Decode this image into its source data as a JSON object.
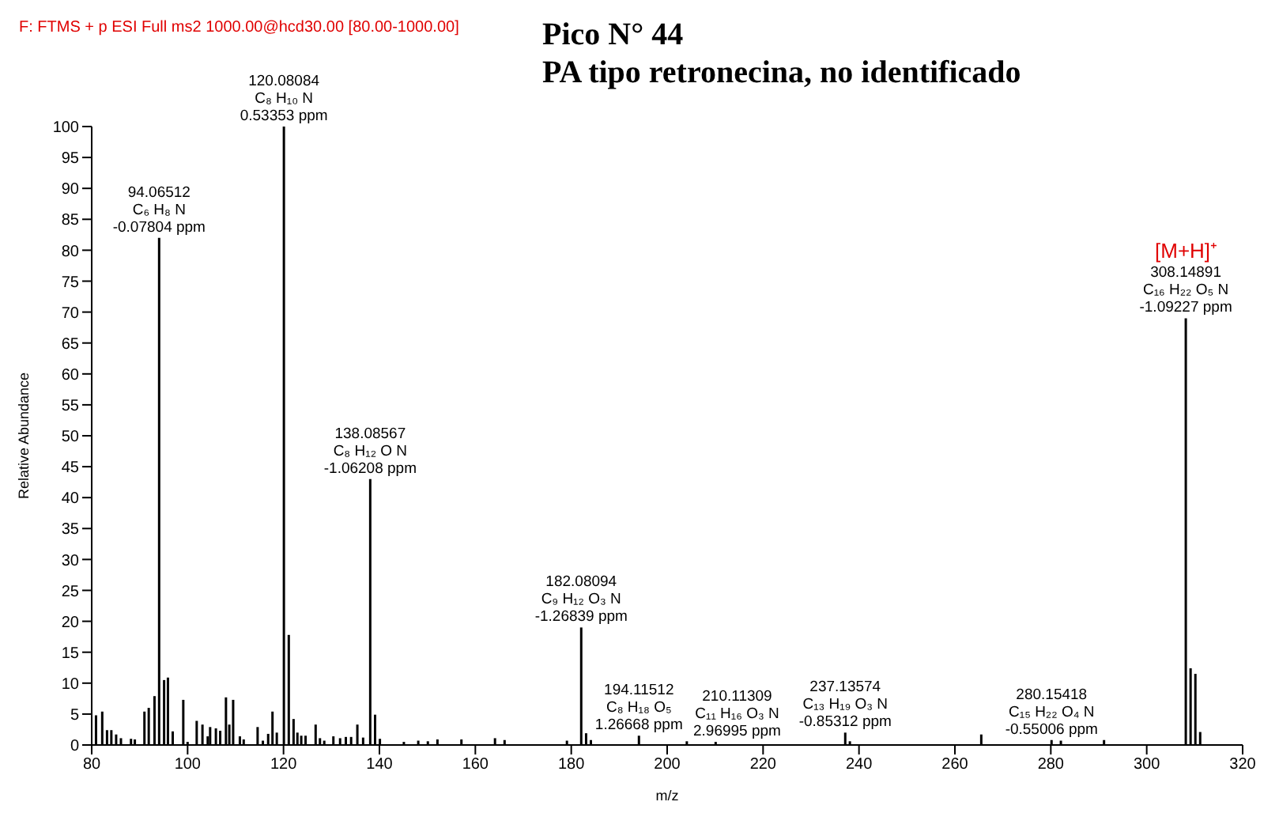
{
  "chart_data": {
    "type": "bar",
    "title": "Pico N° 44",
    "subtitle": "PA tipo retronecina, no identificado",
    "xlabel": "m/z",
    "ylabel": "Relative Abundance",
    "annotations": [
      "F: FTMS + p ESI Full ms2 1000.00@hcd30.00 [80.00-1000.00]",
      {
        "text": "94.06512\nC₆ H₈ N\n-0.07804 ppm",
        "x": 94.06512,
        "y": 82
      },
      {
        "text": "120.08084\nC₈ H₁₀ N\n0.53353 ppm",
        "x": 120.08084,
        "y": 100
      },
      {
        "text": "138.08567\nC₈ H₁₂ O N\n-1.06208 ppm",
        "x": 138.08567,
        "y": 43
      },
      {
        "text": "182.08094\nC₉ H₁₂ O₃ N\n-1.26839 ppm",
        "x": 182.08094,
        "y": 19
      },
      {
        "text": "194.11512\nC₈ H₁₈ O₅\n1.26668 ppm",
        "x": 194.11512,
        "y": 1.5
      },
      {
        "text": "210.11309\nC₁₁ H₁₆ O₃ N\n2.96995 ppm",
        "x": 210.11309,
        "y": 0.5
      },
      {
        "text": "237.13574\nC₁₃ H₁₉ O₃ N\n-0.85312 ppm",
        "x": 237.13574,
        "y": 2.0
      },
      {
        "text": "280.15418\nC₁₅ H₂₂ O₄ N\n-0.55006 ppm",
        "x": 280.15418,
        "y": 0.8
      },
      {
        "text": "308.14891\nC₁₆ H₂₂ O₅ N\n-1.09227 ppm",
        "x": 308.14891,
        "y": 69
      },
      {
        "text": "[M+H]⁺",
        "x": 308.14891,
        "y": 69
      }
    ],
    "x": [
      80.9,
      82.2,
      83.2,
      84.1,
      85.1,
      86.1,
      88.2,
      89.0,
      91.0,
      91.9,
      93.1,
      94.06512,
      95.1,
      95.9,
      96.9,
      99.1,
      100.0,
      101.9,
      103.1,
      104.2,
      104.7,
      105.9,
      106.8,
      108.0,
      108.7,
      109.5,
      110.9,
      111.7,
      114.6,
      115.7,
      116.8,
      117.7,
      118.6,
      120.08084,
      121.1,
      122.1,
      122.9,
      123.7,
      124.6,
      126.7,
      127.6,
      128.5,
      130.4,
      131.8,
      133.0,
      134.1,
      135.4,
      136.6,
      138.08567,
      139.1,
      140.1,
      145.1,
      148.1,
      150.1,
      152.1,
      157.1,
      164.1,
      166.1,
      179.1,
      182.08094,
      183.1,
      184.1,
      194.11512,
      204.1,
      210.11309,
      237.13574,
      238.1,
      265.5,
      280.15418,
      282.1,
      291.1,
      308.14891,
      309.15,
      310.15,
      311.15
    ],
    "values": [
      4.8,
      5.4,
      2.4,
      2.4,
      1.7,
      1.1,
      1.0,
      0.9,
      5.4,
      6.0,
      7.9,
      82,
      10.5,
      10.9,
      2.2,
      7.3,
      0.5,
      3.9,
      3.3,
      1.4,
      2.9,
      2.7,
      2.3,
      7.7,
      3.3,
      7.3,
      1.4,
      0.9,
      2.9,
      0.7,
      1.8,
      5.4,
      2.0,
      100,
      17.8,
      4.2,
      2.0,
      1.5,
      1.5,
      3.3,
      1.1,
      0.7,
      1.4,
      1.1,
      1.3,
      1.3,
      3.3,
      1.2,
      43,
      4.9,
      1.0,
      0.5,
      0.7,
      0.6,
      0.9,
      0.9,
      1.1,
      0.8,
      0.7,
      19,
      1.9,
      0.8,
      1.5,
      0.6,
      0.5,
      2.0,
      0.6,
      1.7,
      0.8,
      0.7,
      0.8,
      69,
      12.4,
      11.5,
      2.1
    ],
    "color": "#000000",
    "xlim": [
      80,
      320
    ],
    "xticks": [
      80,
      100,
      120,
      140,
      160,
      180,
      200,
      220,
      240,
      260,
      280,
      300,
      320
    ],
    "ylim": [
      0,
      100
    ],
    "yticks": [
      0,
      5,
      10,
      15,
      20,
      25,
      30,
      35,
      40,
      45,
      50,
      55,
      60,
      65,
      70,
      75,
      80,
      85,
      90,
      95,
      100
    ],
    "grid": false,
    "legend": false
  }
}
